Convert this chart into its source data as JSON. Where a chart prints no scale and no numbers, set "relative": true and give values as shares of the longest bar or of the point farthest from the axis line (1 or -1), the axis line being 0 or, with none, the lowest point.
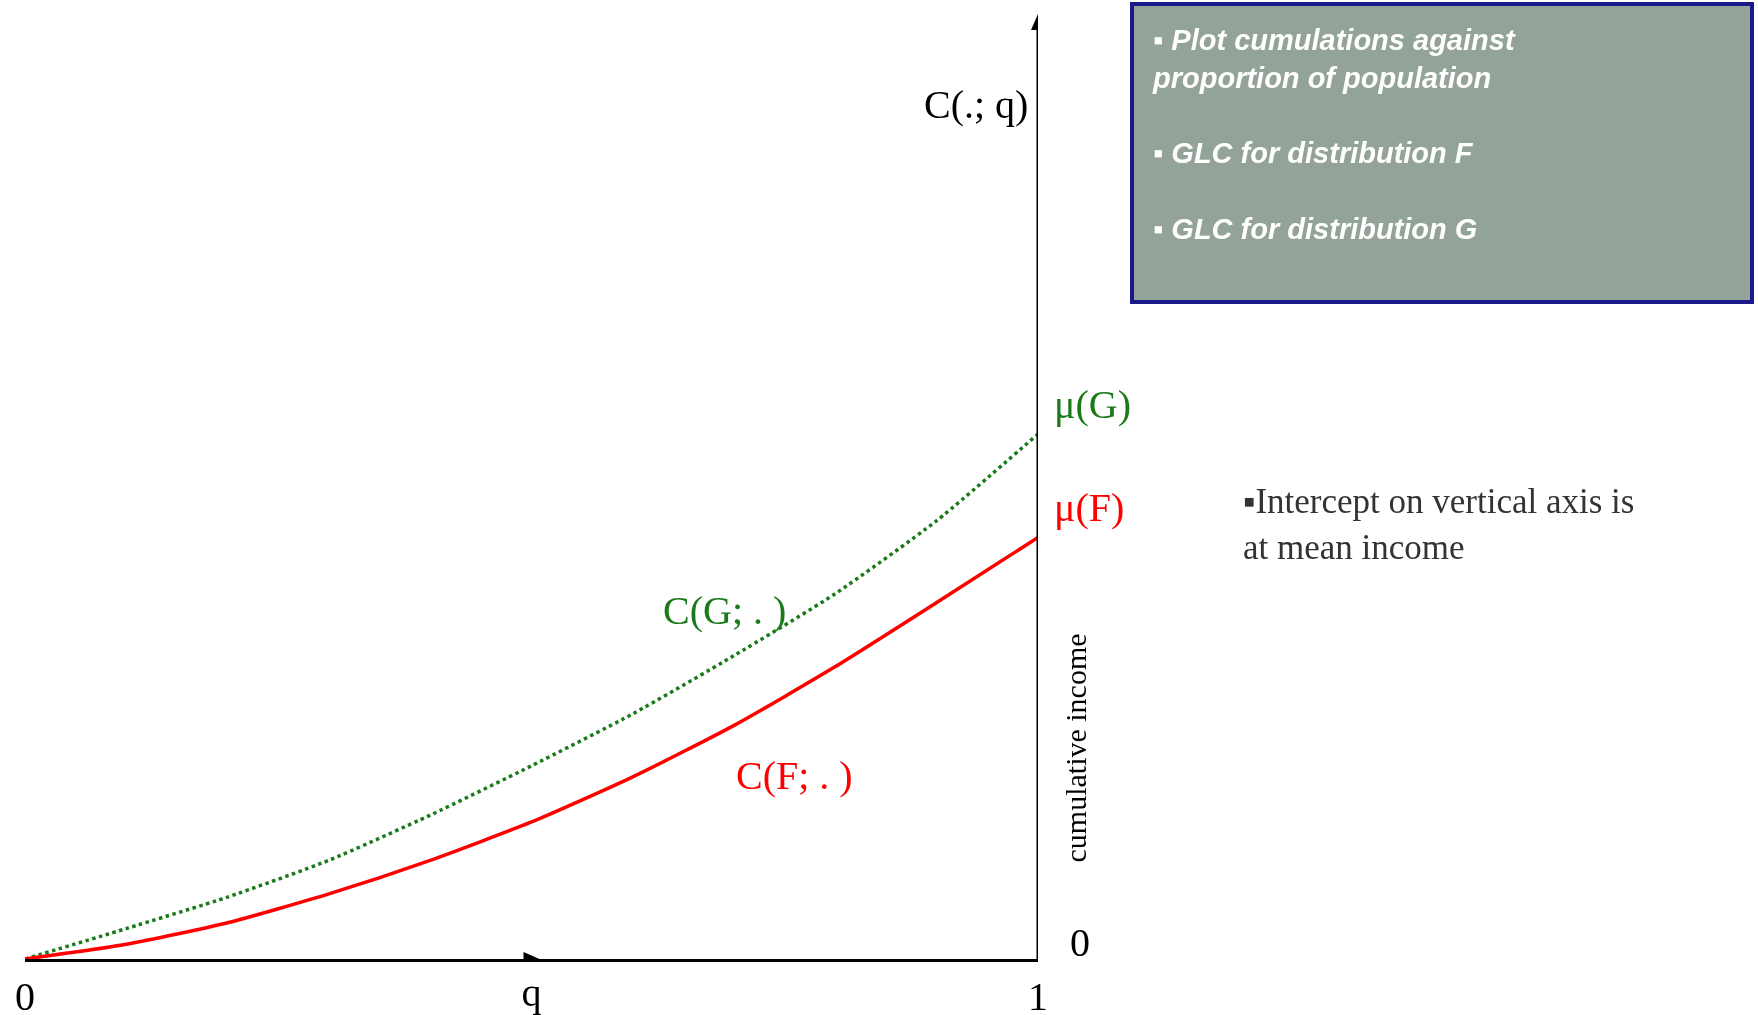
{
  "chart_data": {
    "type": "line",
    "relative": true,
    "xlabel": "q",
    "xlim": [
      0,
      1
    ],
    "xticks": [
      0,
      1
    ],
    "legend": false,
    "marker": "none",
    "x": [
      0,
      0.1,
      0.2,
      0.3,
      0.4,
      0.5,
      0.6,
      0.7,
      0.8,
      0.9,
      1
    ],
    "series": [
      {
        "name": "C(G; . )",
        "color": "#1a7a1a",
        "line_style": "dotted",
        "values": [
          0,
          0.058,
          0.118,
          0.188,
          0.274,
          0.368,
          0.467,
          0.578,
          0.696,
          0.835,
          1
        ]
      },
      {
        "name": "C(F; . )",
        "color": "#ff0000",
        "line_style": "solid",
        "values": [
          0,
          0.028,
          0.069,
          0.124,
          0.188,
          0.261,
          0.347,
          0.445,
          0.557,
          0.679,
          0.803
        ]
      }
    ],
    "annotations": [
      "▪ Plot cumulations against proportion of population",
      "▪ GLC for distribution F",
      "▪ GLC for distribution G",
      "▪Intercept on vertical axis is at mean income",
      "cumulative income",
      "0",
      {
        "text": "μ(G)",
        "x": 1,
        "y": 1
      },
      {
        "text": "μ(F)",
        "x": 1,
        "y": 0.803
      },
      "C(.; q)"
    ]
  }
}
